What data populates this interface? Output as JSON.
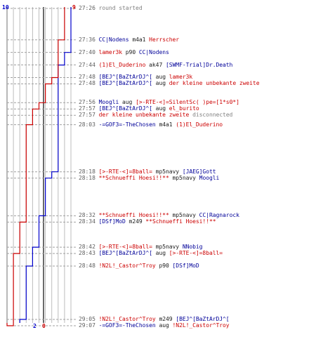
{
  "score": {
    "blue_start": "10",
    "red_start": "9",
    "blue_end": "2",
    "red_end": "0",
    "blue_color": "#0000cc",
    "red_color": "#cc0000"
  },
  "events": [
    {
      "time": "27:26",
      "type": "info",
      "text": "round started"
    },
    {
      "time": "27:36",
      "killer": "CC|Nodens",
      "weapon": "m4a1",
      "victim": "Herrscher",
      "killer_team": "blue",
      "victim_team": "red"
    },
    {
      "time": "27:40",
      "killer": "lamer3k",
      "weapon": "p90",
      "victim": "CC|Nodens",
      "killer_team": "red",
      "victim_team": "blue"
    },
    {
      "time": "27:44",
      "killer": "(1)El_Duderino",
      "weapon": "ak47",
      "victim": "[SWMF-Trial]Dr.Death",
      "killer_team": "red",
      "victim_team": "blue"
    },
    {
      "time": "27:48",
      "killer": "[BEJ^[BaZtArDJ^[",
      "weapon": "aug",
      "victim": "lamer3k",
      "killer_team": "blue",
      "victim_team": "red"
    },
    {
      "time": "27:48",
      "killer": "[BEJ^[BaZtArDJ^[",
      "weapon": "aug",
      "victim": "der kleine unbekante zweite",
      "killer_team": "blue",
      "victim_team": "red"
    },
    {
      "time": "27:56",
      "killer": "Moogli",
      "weapon": "aug",
      "victim": "[>-RTE-<]=SilentSc( )pe=[1*s0*]",
      "killer_team": "blue",
      "victim_team": "red"
    },
    {
      "time": "27:57",
      "killer": "[BEJ^[BaZtArDJ^[",
      "weapon": "aug",
      "victim": "el_burito",
      "killer_team": "blue",
      "victim_team": "red"
    },
    {
      "time": "27:57",
      "type": "disconnect",
      "player": "der kleine unbekante zweite",
      "player_team": "red",
      "text": "disconnected"
    },
    {
      "time": "28:03",
      "killer": "-=GOF3=-TheChosen",
      "weapon": "m4a1",
      "victim": "(1)El_Duderino",
      "killer_team": "blue",
      "victim_team": "red"
    },
    {
      "time": "28:18",
      "killer": "[>-RTE-<]=8ball=",
      "weapon": "mp5navy",
      "victim": "[JAEG]Gott",
      "killer_team": "red",
      "victim_team": "blue"
    },
    {
      "time": "28:18",
      "killer": "**Schnueffi Hoesi!!**",
      "weapon": "mp5navy",
      "victim": "Moogli",
      "killer_team": "red",
      "victim_team": "blue"
    },
    {
      "time": "28:32",
      "killer": "**Schnueffi Hoesi!!**",
      "weapon": "mp5navy",
      "victim": "CC|Ragnarock",
      "killer_team": "red",
      "victim_team": "blue"
    },
    {
      "time": "28:34",
      "killer": "[DSf]MoD",
      "weapon": "m249",
      "victim": "**Schnueffi Hoesi!!**",
      "killer_team": "blue",
      "victim_team": "red"
    },
    {
      "time": "28:42",
      "killer": "[>-RTE-<]=8ball=",
      "weapon": "mp5navy",
      "victim": "NNobig",
      "killer_team": "red",
      "victim_team": "blue"
    },
    {
      "time": "28:43",
      "killer": "[BEJ^[BaZtArDJ^[",
      "weapon": "aug",
      "victim": "[>-RTE-<]=8ball=",
      "killer_team": "blue",
      "victim_team": "red"
    },
    {
      "time": "28:48",
      "killer": "!N2L!_Castor^Troy",
      "weapon": "p90",
      "victim": "[DSf]MoD",
      "killer_team": "red",
      "victim_team": "blue"
    },
    {
      "time": "29:05",
      "killer": "!N2L!_Castor^Troy",
      "weapon": "m249",
      "victim": "[BEJ^[BaZtArDJ^[",
      "killer_team": "red",
      "victim_team": "blue"
    },
    {
      "time": "29:07",
      "killer": "-=GOF3=-TheChosen",
      "weapon": "aug",
      "victim": "!N2L!_Castor^Troy",
      "killer_team": "blue",
      "victim_team": "red"
    }
  ]
}
